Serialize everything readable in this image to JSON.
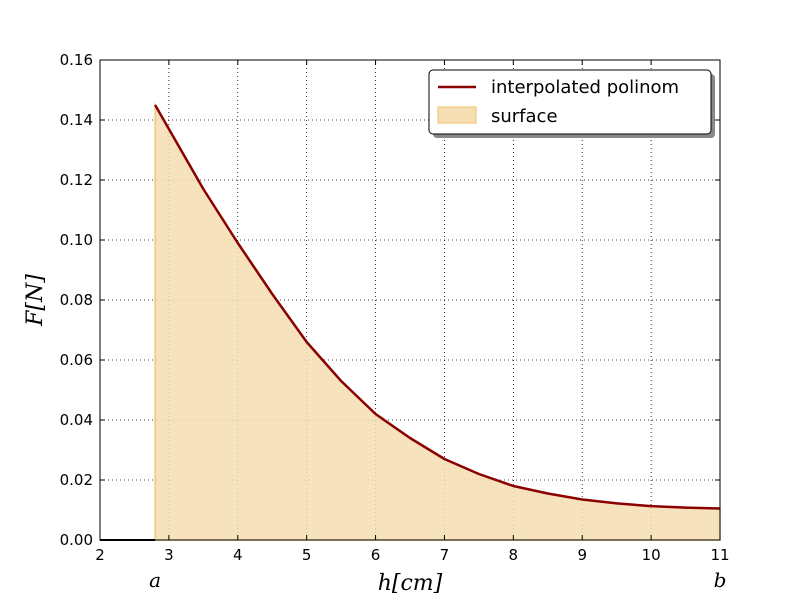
{
  "chart_data": {
    "type": "area",
    "title": "",
    "xlabel": "h[cm]",
    "ylabel": "F[N]",
    "xlim": [
      2,
      11
    ],
    "ylim": [
      0,
      0.16
    ],
    "grid": true,
    "legend_position": "top-right",
    "x_ticks": [
      "2",
      "3",
      "4",
      "5",
      "6",
      "7",
      "8",
      "9",
      "10",
      "11"
    ],
    "y_ticks": [
      "0.00",
      "0.02",
      "0.04",
      "0.06",
      "0.08",
      "0.10",
      "0.12",
      "0.14",
      "0.16"
    ],
    "bound_labels": [
      {
        "text": "a",
        "x": 2.8
      },
      {
        "text": "b",
        "x": 11
      }
    ],
    "series": [
      {
        "name": "interpolated polinom",
        "kind": "line",
        "color": "#8b0000",
        "x": [
          2.8,
          3.0,
          3.5,
          4.0,
          4.5,
          5.0,
          5.5,
          6.0,
          6.5,
          7.0,
          7.5,
          8.0,
          8.5,
          9.0,
          9.5,
          10.0,
          10.5,
          11.0
        ],
        "y": [
          0.145,
          0.137,
          0.117,
          0.099,
          0.082,
          0.066,
          0.053,
          0.042,
          0.034,
          0.027,
          0.022,
          0.018,
          0.0155,
          0.0135,
          0.0122,
          0.0113,
          0.0108,
          0.0105
        ]
      },
      {
        "name": "surface",
        "kind": "area",
        "color": "#f5deb3",
        "edge_color": "#f3c97a",
        "x_range": [
          2.8,
          11
        ]
      }
    ]
  }
}
